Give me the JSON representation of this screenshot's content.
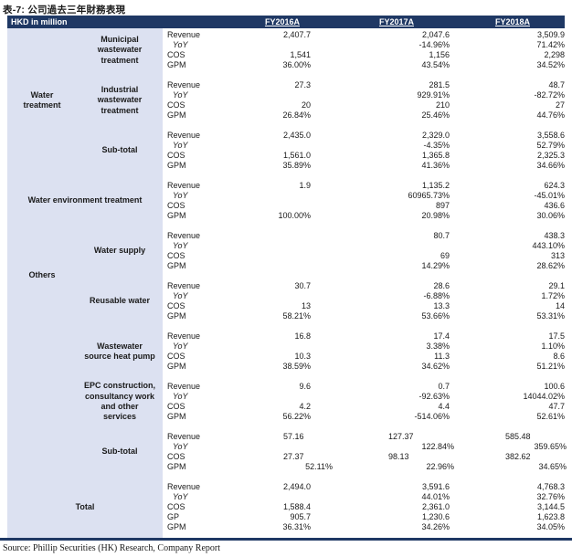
{
  "title": "表-7: 公司過去三年財務表現",
  "chart_data": {
    "type": "table",
    "title": "表-7: 公司過去三年財務表現",
    "unit_label": "HKD in million",
    "columns": [
      "FY2016A",
      "FY2017A",
      "FY2018A"
    ],
    "groups": [
      {
        "key": "water-treatment",
        "label": "Water treatment",
        "label_lines": [
          "Water",
          "treatment"
        ],
        "span": "col-a",
        "block_start": 0,
        "block_end": 2
      },
      {
        "key": "water-environment",
        "label": "Water environment treatment",
        "label_lines": [
          "Water environment treatment"
        ],
        "span": "full",
        "block_start": 3,
        "block_end": 3
      },
      {
        "key": "others",
        "label": "Others",
        "label_lines": [
          "Others"
        ],
        "span": "col-a",
        "block_start": 4,
        "block_end": 8
      },
      {
        "key": "total",
        "label": "Total",
        "label_lines": [
          "Total"
        ],
        "span": "full",
        "block_start": 9,
        "block_end": 9
      }
    ],
    "blocks": [
      {
        "category": "Municipal wastewater treatment",
        "category_lines": [
          "Municipal",
          "wastewater",
          "treatment"
        ],
        "rows": [
          {
            "metric": "Revenue",
            "values": [
              "2,407.7",
              "2,047.6",
              "3,509.9"
            ]
          },
          {
            "metric": "YoY",
            "values": [
              "",
              "-14.96%",
              "71.42%"
            ]
          },
          {
            "metric": "COS",
            "values": [
              "1,541",
              "1,156",
              "2,298"
            ]
          },
          {
            "metric": "GPM",
            "values": [
              "36.00%",
              "43.54%",
              "34.52%"
            ]
          }
        ]
      },
      {
        "category": "Industrial wastewater treatment",
        "category_lines": [
          "Industrial",
          "wastewater",
          "treatment"
        ],
        "rows": [
          {
            "metric": "Revenue",
            "values": [
              "27.3",
              "281.5",
              "48.7"
            ]
          },
          {
            "metric": "YoY",
            "values": [
              "",
              "929.91%",
              "-82.72%"
            ]
          },
          {
            "metric": "COS",
            "values": [
              "20",
              "210",
              "27"
            ]
          },
          {
            "metric": "GPM",
            "values": [
              "26.84%",
              "25.46%",
              "44.76%"
            ]
          }
        ]
      },
      {
        "category": "Sub-total",
        "category_lines": [
          "Sub-total"
        ],
        "rows": [
          {
            "metric": "Revenue",
            "values": [
              "2,435.0",
              "2,329.0",
              "3,558.6"
            ]
          },
          {
            "metric": "YoY",
            "values": [
              "",
              "-4.35%",
              "52.79%"
            ]
          },
          {
            "metric": "COS",
            "values": [
              "1,561.0",
              "1,365.8",
              "2,325.3"
            ]
          },
          {
            "metric": "GPM",
            "values": [
              "35.89%",
              "41.36%",
              "34.66%"
            ]
          }
        ]
      },
      {
        "category": "",
        "category_lines": [],
        "rows": [
          {
            "metric": "Revenue",
            "values": [
              "1.9",
              "1,135.2",
              "624.3"
            ]
          },
          {
            "metric": "YoY",
            "values": [
              "",
              "60965.73%",
              "-45.01%"
            ]
          },
          {
            "metric": "COS",
            "values": [
              "",
              "897",
              "436.6"
            ]
          },
          {
            "metric": "GPM",
            "values": [
              "100.00%",
              "20.98%",
              "30.06%"
            ]
          }
        ]
      },
      {
        "category": "Water supply",
        "category_lines": [
          "Water supply"
        ],
        "rows": [
          {
            "metric": "Revenue",
            "values": [
              "",
              "80.7",
              "438.3"
            ]
          },
          {
            "metric": "YoY",
            "values": [
              "",
              "",
              "443.10%"
            ]
          },
          {
            "metric": "COS",
            "values": [
              "",
              "69",
              "313"
            ]
          },
          {
            "metric": "GPM",
            "values": [
              "",
              "14.29%",
              "28.62%"
            ]
          }
        ]
      },
      {
        "category": "Reusable water",
        "category_lines": [
          "Reusable water"
        ],
        "rows": [
          {
            "metric": "Revenue",
            "values": [
              "30.7",
              "28.6",
              "29.1"
            ]
          },
          {
            "metric": "YoY",
            "values": [
              "",
              "-6.88%",
              "1.72%"
            ]
          },
          {
            "metric": "COS",
            "values": [
              "13",
              "13.3",
              "14"
            ]
          },
          {
            "metric": "GPM",
            "values": [
              "58.21%",
              "53.66%",
              "53.31%"
            ]
          }
        ]
      },
      {
        "category": "Wastewater source heat pump",
        "category_lines": [
          "Wastewater",
          "source heat pump"
        ],
        "rows": [
          {
            "metric": "Revenue",
            "values": [
              "16.8",
              "17.4",
              "17.5"
            ]
          },
          {
            "metric": "YoY",
            "values": [
              "",
              "3.38%",
              "1.10%"
            ]
          },
          {
            "metric": "COS",
            "values": [
              "10.3",
              "11.3",
              "8.6"
            ]
          },
          {
            "metric": "GPM",
            "values": [
              "38.59%",
              "34.62%",
              "51.21%"
            ]
          }
        ]
      },
      {
        "category": "EPC construction, consultancy work and other services",
        "category_lines": [
          "EPC construction,",
          "consultancy work",
          "and other",
          "services"
        ],
        "rows": [
          {
            "metric": "Revenue",
            "values": [
              "9.6",
              "0.7",
              "100.6"
            ]
          },
          {
            "metric": "YoY",
            "values": [
              "",
              "-92.63%",
              "14044.02%"
            ]
          },
          {
            "metric": "COS",
            "values": [
              "4.2",
              "4.4",
              "47.7"
            ]
          },
          {
            "metric": "GPM",
            "values": [
              "56.22%",
              "-514.06%",
              "52.61%"
            ]
          }
        ]
      },
      {
        "category": "Sub-total",
        "category_lines": [
          "Sub-total"
        ],
        "variant": "shifted",
        "rows": [
          {
            "metric": "Revenue",
            "values": [
              "57.16",
              "127.37",
              "585.48"
            ]
          },
          {
            "metric": "YoY",
            "values": [
              "",
              "122.84%",
              "359.65%"
            ]
          },
          {
            "metric": "COS",
            "values": [
              "27.37",
              "98.13",
              "382.62"
            ]
          },
          {
            "metric": "GPM",
            "values": [
              "52.11%",
              "22.96%",
              "34.65%"
            ]
          }
        ]
      },
      {
        "category": "",
        "category_lines": [],
        "rows": [
          {
            "metric": "Revenue",
            "values": [
              "2,494.0",
              "3,591.6",
              "4,768.3"
            ]
          },
          {
            "metric": "YoY",
            "values": [
              "",
              "44.01%",
              "32.76%"
            ]
          },
          {
            "metric": "COS",
            "values": [
              "1,588.4",
              "2,361.0",
              "3,144.5"
            ]
          },
          {
            "metric": "GP",
            "values": [
              "905.7",
              "1,230.6",
              "1,623.8"
            ]
          },
          {
            "metric": "GPM",
            "values": [
              "36.31%",
              "34.26%",
              "34.05%"
            ]
          }
        ]
      }
    ]
  },
  "footer": {
    "source": "Source: Phillip Securities (HK) Research, Company Report"
  },
  "colors": {
    "header_bg": "#1F3864",
    "panel_bg": "#DCE1F1",
    "rule": "#1F3864",
    "text": "#1A1A1A"
  }
}
